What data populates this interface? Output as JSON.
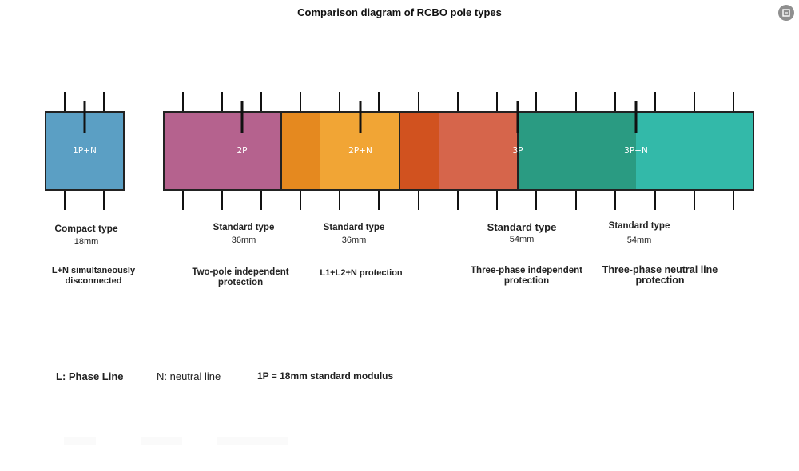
{
  "title": "Comparison diagram of RCBO pole types",
  "corner_icon": "screenshot-icon",
  "modules": [
    {
      "label": "1P+N",
      "color": "#5b9fc4"
    },
    {
      "label": "2P",
      "color": "#b5628e"
    },
    {
      "label": "2P+N",
      "color": "#f1a535"
    },
    {
      "label": "3P",
      "color": "#d6654b"
    },
    {
      "label": "3P+N",
      "color": "#33b9a9"
    }
  ],
  "overlap_colors": {
    "two_pole_edge": "#e5891f",
    "three_pole_edge": "#d1521f",
    "three_phase_neutral_edge": "#2a9b82"
  },
  "types": [
    {
      "name": "Compact type",
      "size": "18mm",
      "desc_line1": "L+N simultaneously",
      "desc_line2": "disconnected"
    },
    {
      "name": "Standard type",
      "size": "36mm",
      "desc_line1": "Two-pole independent",
      "desc_line2": "protection"
    },
    {
      "name": "Standard type",
      "size": "36mm",
      "desc_line1": "L1+L2+N protection",
      "desc_line2": ""
    },
    {
      "name": "Standard type",
      "size": "54mm",
      "desc_line1": "Three-phase independent",
      "desc_line2": "protection"
    },
    {
      "name": "Standard type",
      "size": "54mm",
      "desc_line1": "Three-phase neutral line",
      "desc_line2": "protection"
    }
  ],
  "legend": {
    "phase": "L: Phase Line",
    "neutral": "N: neutral line",
    "modulus": "1P = 18mm standard modulus"
  }
}
